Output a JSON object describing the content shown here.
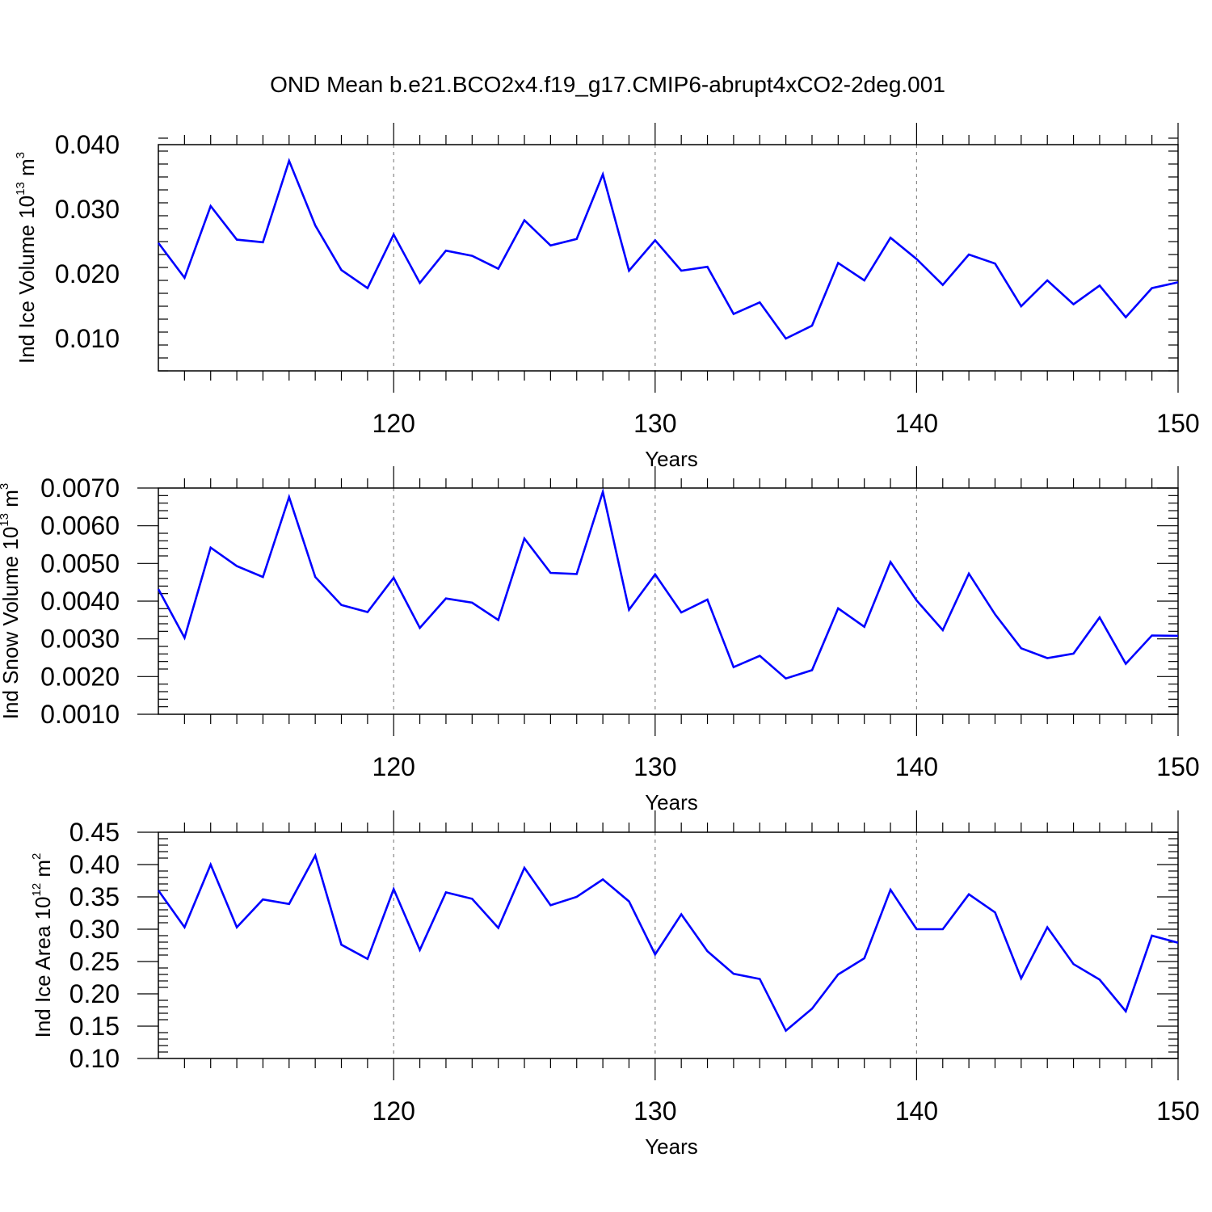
{
  "figure": {
    "title": "OND Mean b.e21.BCO2x4.f19_g17.CMIP6-abrupt4xCO2-2deg.001"
  },
  "chart_data": [
    {
      "type": "line",
      "title": "",
      "xlabel": "Years",
      "ylabel": {
        "main": "Ind Ice Volume 10",
        "exp": "13",
        "unit": " m",
        "unit_exp": "3"
      },
      "xlim": [
        111,
        150
      ],
      "ylim": [
        0.005,
        0.04
      ],
      "x_ticks": [
        120,
        130,
        140,
        150
      ],
      "x_tick_labels": [
        "120",
        "130",
        "140",
        "150"
      ],
      "y_ticks": [
        0.01,
        0.02,
        0.03,
        0.04
      ],
      "y_tick_labels": [
        "0.010",
        "0.020",
        "0.030",
        "0.040"
      ],
      "grid": "dashed vertical lines at major x ticks",
      "line_color": "#0000ff",
      "series": [
        {
          "x": [
            111,
            112,
            113,
            114,
            115,
            116,
            117,
            118,
            119,
            120,
            121,
            122,
            123,
            124,
            125,
            126,
            127,
            128,
            129,
            130,
            131,
            132,
            133,
            134,
            135,
            136,
            137,
            138,
            139,
            140,
            141,
            142,
            143,
            144,
            145,
            146,
            147,
            148,
            149,
            150
          ],
          "values": [
            0.0248,
            0.0194,
            0.0305,
            0.0253,
            0.0249,
            0.0375,
            0.0275,
            0.0206,
            0.0178,
            0.0261,
            0.0186,
            0.0236,
            0.0228,
            0.0208,
            0.0283,
            0.0244,
            0.0254,
            0.0354,
            0.0205,
            0.0252,
            0.0205,
            0.0211,
            0.0138,
            0.0156,
            0.01,
            0.012,
            0.0217,
            0.019,
            0.0256,
            0.0223,
            0.0183,
            0.023,
            0.0216,
            0.015,
            0.019,
            0.0153,
            0.0182,
            0.0133,
            0.0178,
            0.0187
          ]
        }
      ]
    },
    {
      "type": "line",
      "title": "",
      "xlabel": "Years",
      "ylabel": {
        "main": "Ind Snow Volume 10",
        "exp": "13",
        "unit": " m",
        "unit_exp": "3"
      },
      "xlim": [
        111,
        150
      ],
      "ylim": [
        0.001,
        0.007
      ],
      "x_ticks": [
        120,
        130,
        140,
        150
      ],
      "x_tick_labels": [
        "120",
        "130",
        "140",
        "150"
      ],
      "y_ticks": [
        0.001,
        0.002,
        0.003,
        0.004,
        0.005,
        0.006,
        0.007
      ],
      "y_tick_labels": [
        "0.0010",
        "0.0020",
        "0.0030",
        "0.0040",
        "0.0050",
        "0.0060",
        "0.0070"
      ],
      "grid": "dashed vertical lines at major x ticks",
      "line_color": "#0000ff",
      "series": [
        {
          "x": [
            111,
            112,
            113,
            114,
            115,
            116,
            117,
            118,
            119,
            120,
            121,
            122,
            123,
            124,
            125,
            126,
            127,
            128,
            129,
            130,
            131,
            132,
            133,
            134,
            135,
            136,
            137,
            138,
            139,
            140,
            141,
            142,
            143,
            144,
            145,
            146,
            147,
            148,
            149,
            150
          ],
          "values": [
            0.00432,
            0.00303,
            0.00542,
            0.00493,
            0.00464,
            0.00676,
            0.00464,
            0.0039,
            0.00371,
            0.00462,
            0.00329,
            0.00407,
            0.00396,
            0.0035,
            0.00566,
            0.00475,
            0.00472,
            0.0069,
            0.00377,
            0.00471,
            0.0037,
            0.00404,
            0.00225,
            0.00255,
            0.00195,
            0.00217,
            0.00381,
            0.00332,
            0.00504,
            0.00402,
            0.00323,
            0.00473,
            0.00365,
            0.00275,
            0.00249,
            0.00261,
            0.00357,
            0.00234,
            0.00309,
            0.00308
          ]
        }
      ]
    },
    {
      "type": "line",
      "title": "",
      "xlabel": "Years",
      "ylabel": {
        "main": "Ind Ice Area 10",
        "exp": "12",
        "unit": " m",
        "unit_exp": "2"
      },
      "xlim": [
        111,
        150
      ],
      "ylim": [
        0.1,
        0.45
      ],
      "x_ticks": [
        120,
        130,
        140,
        150
      ],
      "x_tick_labels": [
        "120",
        "130",
        "140",
        "150"
      ],
      "y_ticks": [
        0.1,
        0.15,
        0.2,
        0.25,
        0.3,
        0.35,
        0.4,
        0.45
      ],
      "y_tick_labels": [
        "0.10",
        "0.15",
        "0.20",
        "0.25",
        "0.30",
        "0.35",
        "0.40",
        "0.45"
      ],
      "grid": "dashed vertical lines at major x ticks",
      "line_color": "#0000ff",
      "series": [
        {
          "x": [
            111,
            112,
            113,
            114,
            115,
            116,
            117,
            118,
            119,
            120,
            121,
            122,
            123,
            124,
            125,
            126,
            127,
            128,
            129,
            130,
            131,
            132,
            133,
            134,
            135,
            136,
            137,
            138,
            139,
            140,
            141,
            142,
            143,
            144,
            145,
            146,
            147,
            148,
            149,
            150
          ],
          "values": [
            0.36,
            0.303,
            0.4,
            0.303,
            0.346,
            0.339,
            0.414,
            0.276,
            0.254,
            0.362,
            0.268,
            0.357,
            0.347,
            0.302,
            0.395,
            0.337,
            0.35,
            0.377,
            0.343,
            0.261,
            0.323,
            0.266,
            0.231,
            0.223,
            0.143,
            0.177,
            0.23,
            0.255,
            0.361,
            0.3,
            0.3,
            0.354,
            0.326,
            0.224,
            0.303,
            0.246,
            0.222,
            0.173,
            0.29,
            0.279
          ]
        }
      ]
    }
  ]
}
